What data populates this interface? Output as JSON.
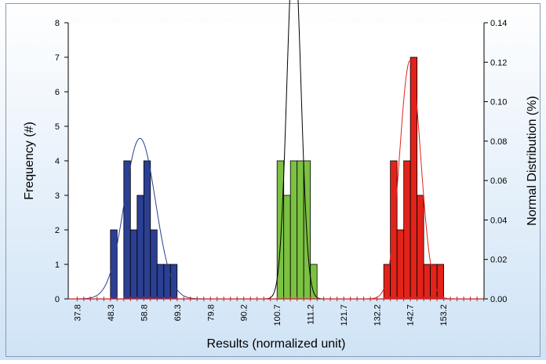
{
  "chart_data": {
    "type": "bar",
    "xlabel": "Results (normalized unit)",
    "ylabel": "Frequency (#)",
    "y2label": "Normal Distribution (%)",
    "x_tick_labels": [
      "37.8",
      "48.3",
      "58.8",
      "69.3",
      "79.8",
      "90.2",
      "100.7",
      "111.2",
      "121.7",
      "132.2",
      "142.7",
      "153.2"
    ],
    "y_ticks": [
      0,
      1,
      2,
      3,
      4,
      5,
      6,
      7,
      8
    ],
    "y2_ticks": [
      "0.00",
      "0.02",
      "0.04",
      "0.06",
      "0.08",
      "0.10",
      "0.12",
      "0.14"
    ],
    "xlim": [
      35.0,
      166.0
    ],
    "ylim": [
      0,
      8
    ],
    "y2lim": [
      0,
      0.14
    ],
    "bin_width": 2.1,
    "series": [
      {
        "color": "#2B3F93",
        "bins": [
          49.35,
          51.45,
          53.55,
          55.65,
          57.75,
          59.85,
          61.95,
          64.05,
          66.15,
          68.25
        ],
        "counts": [
          2,
          0,
          4,
          2,
          3,
          4,
          2,
          1,
          1,
          1
        ],
        "curve": {
          "mean": 57.6,
          "sd": 4.9,
          "color": "#2B3F93"
        }
      },
      {
        "color": "#7BC142",
        "bins": [
          101.85,
          103.95,
          106.05,
          108.15,
          110.25,
          112.35
        ],
        "counts": [
          4,
          3,
          4,
          4,
          4,
          1
        ],
        "curve": {
          "mean": 106.1,
          "sd": 2.2,
          "color": "#000000"
        }
      },
      {
        "color": "#E2231A",
        "bins": [
          135.45,
          137.55,
          139.65,
          141.75,
          143.85,
          145.95,
          148.05,
          150.15,
          152.25
        ],
        "counts": [
          1,
          4,
          2,
          4,
          7,
          3,
          1,
          1,
          1
        ],
        "curve": {
          "mean": 142.7,
          "sd": 3.3,
          "color": "#E2231A"
        }
      }
    ],
    "grid": false,
    "legend": "none"
  }
}
